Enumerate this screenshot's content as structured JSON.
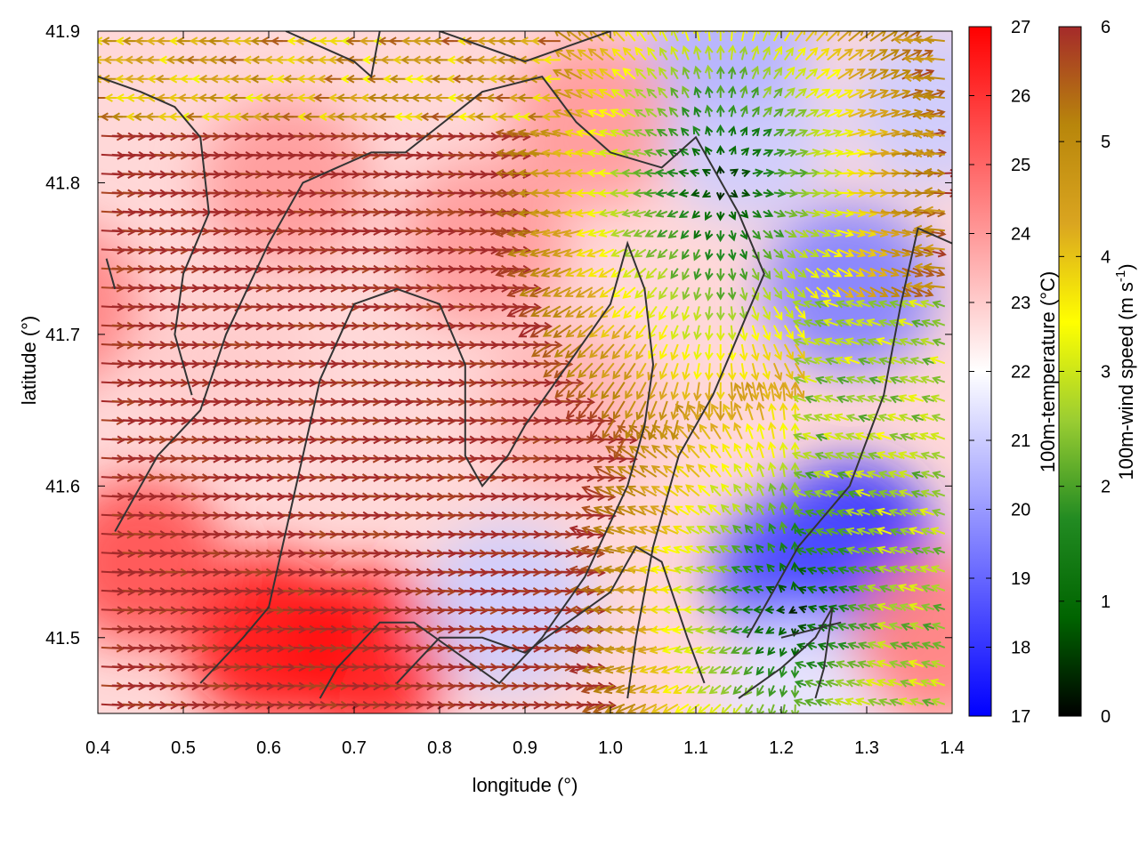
{
  "chart_data": {
    "type": "heatmap",
    "overlay": "vector field (100m wind) with contour lines",
    "xlabel": "longitude (°)",
    "ylabel": "latitude (°)",
    "xlim": [
      0.4,
      1.4
    ],
    "ylim": [
      41.45,
      41.9
    ],
    "x_ticks": [
      "0.4",
      "0.5",
      "0.6",
      "0.7",
      "0.8",
      "0.9",
      "1.0",
      "1.1",
      "1.2",
      "1.3",
      "1.4"
    ],
    "y_ticks": [
      "41.5",
      "41.6",
      "41.7",
      "41.8",
      "41.9"
    ],
    "grid": false,
    "temperature_colorbar": {
      "label": "100m-temperature (°C)",
      "range": [
        17,
        27
      ],
      "ticks": [
        "17",
        "18",
        "19",
        "20",
        "21",
        "22",
        "23",
        "24",
        "25",
        "26",
        "27"
      ],
      "colors": [
        "#0000ff",
        "#ffffff",
        "#ff0000"
      ]
    },
    "wind_colorbar": {
      "label_main": "100m-wind speed (m s",
      "label_sup": "-1",
      "label_end": ")",
      "range": [
        0,
        6
      ],
      "ticks": [
        "0",
        "1",
        "2",
        "3",
        "4",
        "5",
        "6"
      ],
      "colors": [
        "#000000",
        "#006400",
        "#228b22",
        "#9acd32",
        "#ffff00",
        "#daa520",
        "#b8860b",
        "#a52a2a"
      ]
    },
    "temperature_blobs": [
      {
        "lon": 0.72,
        "lat": 41.49,
        "value": 26.5
      },
      {
        "lon": 0.6,
        "lat": 41.5,
        "value": 26.8
      },
      {
        "lon": 0.45,
        "lat": 41.55,
        "value": 25.5
      },
      {
        "lon": 0.35,
        "lat": 41.72,
        "value": 24.5
      },
      {
        "lon": 0.55,
        "lat": 41.68,
        "value": 23.0
      },
      {
        "lon": 0.62,
        "lat": 41.8,
        "value": 24.0
      },
      {
        "lon": 0.85,
        "lat": 41.76,
        "value": 24.0
      },
      {
        "lon": 0.98,
        "lat": 41.84,
        "value": 24.0
      },
      {
        "lon": 0.95,
        "lat": 41.65,
        "value": 23.5
      },
      {
        "lon": 0.88,
        "lat": 41.52,
        "value": 21.0
      },
      {
        "lon": 1.16,
        "lat": 41.83,
        "value": 21.0
      },
      {
        "lon": 1.14,
        "lat": 41.9,
        "value": 20.5
      },
      {
        "lon": 1.28,
        "lat": 41.73,
        "value": 19.5
      },
      {
        "lon": 1.28,
        "lat": 41.56,
        "value": 17.8
      },
      {
        "lon": 1.22,
        "lat": 41.54,
        "value": 18.5
      },
      {
        "lon": 1.22,
        "lat": 41.46,
        "value": 21.5
      },
      {
        "lon": 1.38,
        "lat": 41.5,
        "value": 24.5
      },
      {
        "lon": 1.38,
        "lat": 41.85,
        "value": 21.0
      }
    ],
    "wind_centers": [
      {
        "lon": 1.13,
        "lat": 41.8,
        "kind": "divergence"
      },
      {
        "lon": 1.22,
        "lat": 41.52,
        "kind": "divergence"
      }
    ],
    "contours": [
      [
        [
          0.4,
          41.87
        ],
        [
          0.45,
          41.86
        ],
        [
          0.49,
          41.85
        ],
        [
          0.52,
          41.83
        ],
        [
          0.53,
          41.78
        ],
        [
          0.5,
          41.74
        ],
        [
          0.49,
          41.7
        ],
        [
          0.51,
          41.66
        ]
      ],
      [
        [
          0.41,
          41.75
        ],
        [
          0.42,
          41.73
        ]
      ],
      [
        [
          0.42,
          41.57
        ],
        [
          0.44,
          41.59
        ],
        [
          0.47,
          41.62
        ],
        [
          0.52,
          41.65
        ],
        [
          0.55,
          41.7
        ],
        [
          0.6,
          41.76
        ],
        [
          0.64,
          41.8
        ],
        [
          0.72,
          41.82
        ],
        [
          0.76,
          41.82
        ],
        [
          0.85,
          41.86
        ],
        [
          0.92,
          41.87
        ],
        [
          0.96,
          41.84
        ],
        [
          1.0,
          41.82
        ],
        [
          1.06,
          41.81
        ],
        [
          1.1,
          41.83
        ],
        [
          1.15,
          41.78
        ],
        [
          1.18,
          41.74
        ],
        [
          1.15,
          41.7
        ],
        [
          1.12,
          41.66
        ],
        [
          1.08,
          41.62
        ],
        [
          1.05,
          41.56
        ],
        [
          1.03,
          41.5
        ],
        [
          1.02,
          41.46
        ]
      ],
      [
        [
          0.52,
          41.47
        ],
        [
          0.57,
          41.5
        ],
        [
          0.6,
          41.52
        ],
        [
          0.62,
          41.57
        ],
        [
          0.64,
          41.62
        ],
        [
          0.66,
          41.67
        ],
        [
          0.7,
          41.72
        ],
        [
          0.75,
          41.73
        ],
        [
          0.8,
          41.72
        ],
        [
          0.83,
          41.68
        ],
        [
          0.83,
          41.62
        ],
        [
          0.85,
          41.6
        ],
        [
          0.88,
          41.62
        ],
        [
          0.9,
          41.64
        ],
        [
          0.95,
          41.68
        ],
        [
          1.0,
          41.72
        ],
        [
          1.02,
          41.76
        ],
        [
          1.04,
          41.73
        ],
        [
          1.05,
          41.68
        ],
        [
          1.04,
          41.64
        ],
        [
          1.02,
          41.6
        ],
        [
          0.97,
          41.54
        ],
        [
          0.92,
          41.5
        ],
        [
          0.87,
          41.47
        ],
        [
          0.82,
          41.49
        ],
        [
          0.77,
          41.51
        ],
        [
          0.73,
          41.51
        ],
        [
          0.68,
          41.48
        ],
        [
          0.66,
          41.46
        ]
      ],
      [
        [
          0.75,
          41.47
        ],
        [
          0.8,
          41.5
        ],
        [
          0.85,
          41.5
        ],
        [
          0.9,
          41.49
        ],
        [
          0.95,
          41.51
        ],
        [
          1.0,
          41.53
        ],
        [
          1.03,
          41.56
        ],
        [
          1.06,
          41.55
        ],
        [
          1.09,
          41.5
        ],
        [
          1.11,
          41.47
        ]
      ],
      [
        [
          1.15,
          41.46
        ],
        [
          1.2,
          41.48
        ],
        [
          1.24,
          41.5
        ],
        [
          1.26,
          41.52
        ],
        [
          1.25,
          41.48
        ],
        [
          1.24,
          41.46
        ]
      ],
      [
        [
          1.2,
          41.5
        ],
        [
          1.27,
          41.51
        ]
      ],
      [
        [
          1.4,
          41.76
        ],
        [
          1.36,
          41.77
        ],
        [
          1.34,
          41.72
        ],
        [
          1.32,
          41.66
        ],
        [
          1.28,
          41.6
        ],
        [
          1.25,
          41.58
        ],
        [
          1.22,
          41.56
        ],
        [
          1.19,
          41.53
        ],
        [
          1.16,
          41.5
        ]
      ],
      [
        [
          0.62,
          41.9
        ],
        [
          0.7,
          41.88
        ],
        [
          0.72,
          41.87
        ],
        [
          0.73,
          41.9
        ]
      ],
      [
        [
          0.8,
          41.9
        ],
        [
          0.85,
          41.89
        ],
        [
          0.9,
          41.88
        ],
        [
          1.0,
          41.9
        ]
      ]
    ]
  }
}
